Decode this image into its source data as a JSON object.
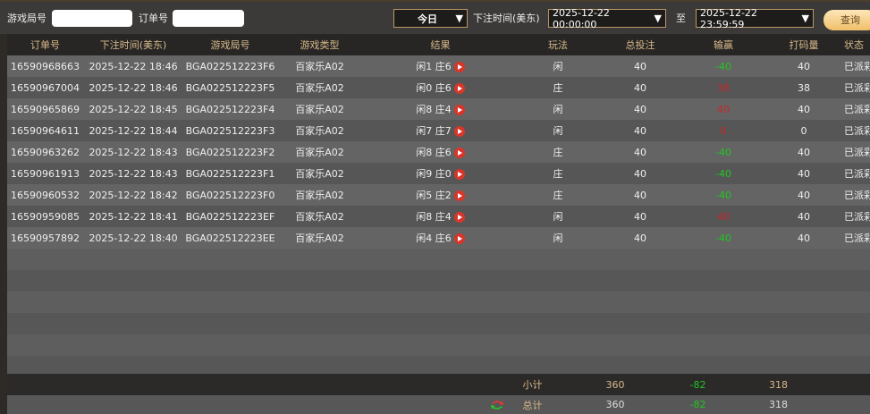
{
  "filters": {
    "round_label": "游戏局号",
    "round_value": "",
    "order_label": "订单号",
    "order_value": "",
    "period": "今日",
    "time_label": "下注时间(美东)",
    "start": "2025-12-22 00:00:00",
    "to": "至",
    "end": "2025-12-22 23:59:59",
    "query": "查询"
  },
  "colors": {
    "accent": "#d8b98a",
    "win": "#22c322",
    "loss": "#c8282a"
  },
  "columns": [
    "订单号",
    "下注时间(美东)",
    "游戏局号",
    "游戏类型",
    "结果",
    "玩法",
    "总投注",
    "输赢",
    "打码量",
    "状态"
  ],
  "rows": [
    [
      "16590968663",
      "2025-12-22 18:46",
      "BGA022512223F6",
      "百家乐A02",
      "闲1 庄6",
      "闲",
      "40",
      "-40",
      "40",
      "已派彩"
    ],
    [
      "16590967004",
      "2025-12-22 18:46",
      "BGA022512223F5",
      "百家乐A02",
      "闲0 庄6",
      "庄",
      "40",
      "38",
      "38",
      "已派彩"
    ],
    [
      "16590965869",
      "2025-12-22 18:45",
      "BGA022512223F4",
      "百家乐A02",
      "闲8 庄4",
      "闲",
      "40",
      "40",
      "40",
      "已派彩"
    ],
    [
      "16590964611",
      "2025-12-22 18:44",
      "BGA022512223F3",
      "百家乐A02",
      "闲7 庄7",
      "闲",
      "40",
      "0",
      "0",
      "已派彩"
    ],
    [
      "16590963262",
      "2025-12-22 18:43",
      "BGA022512223F2",
      "百家乐A02",
      "闲8 庄6",
      "庄",
      "40",
      "-40",
      "40",
      "已派彩"
    ],
    [
      "16590961913",
      "2025-12-22 18:43",
      "BGA022512223F1",
      "百家乐A02",
      "闲9 庄0",
      "庄",
      "40",
      "-40",
      "40",
      "已派彩"
    ],
    [
      "16590960532",
      "2025-12-22 18:42",
      "BGA022512223F0",
      "百家乐A02",
      "闲5 庄2",
      "庄",
      "40",
      "-40",
      "40",
      "已派彩"
    ],
    [
      "16590959085",
      "2025-12-22 18:41",
      "BGA022512223EF",
      "百家乐A02",
      "闲8 庄4",
      "闲",
      "40",
      "40",
      "40",
      "已派彩"
    ],
    [
      "16590957892",
      "2025-12-22 18:40",
      "BGA022512223EE",
      "百家乐A02",
      "闲4 庄6",
      "闲",
      "40",
      "-40",
      "40",
      "已派彩"
    ]
  ],
  "subtotal": {
    "label": "小计",
    "bet": "360",
    "winloss": "-82",
    "valid": "318"
  },
  "total": {
    "label": "总计",
    "bet": "360",
    "winloss": "-82",
    "valid": "318",
    "icon": "refresh-icon"
  }
}
